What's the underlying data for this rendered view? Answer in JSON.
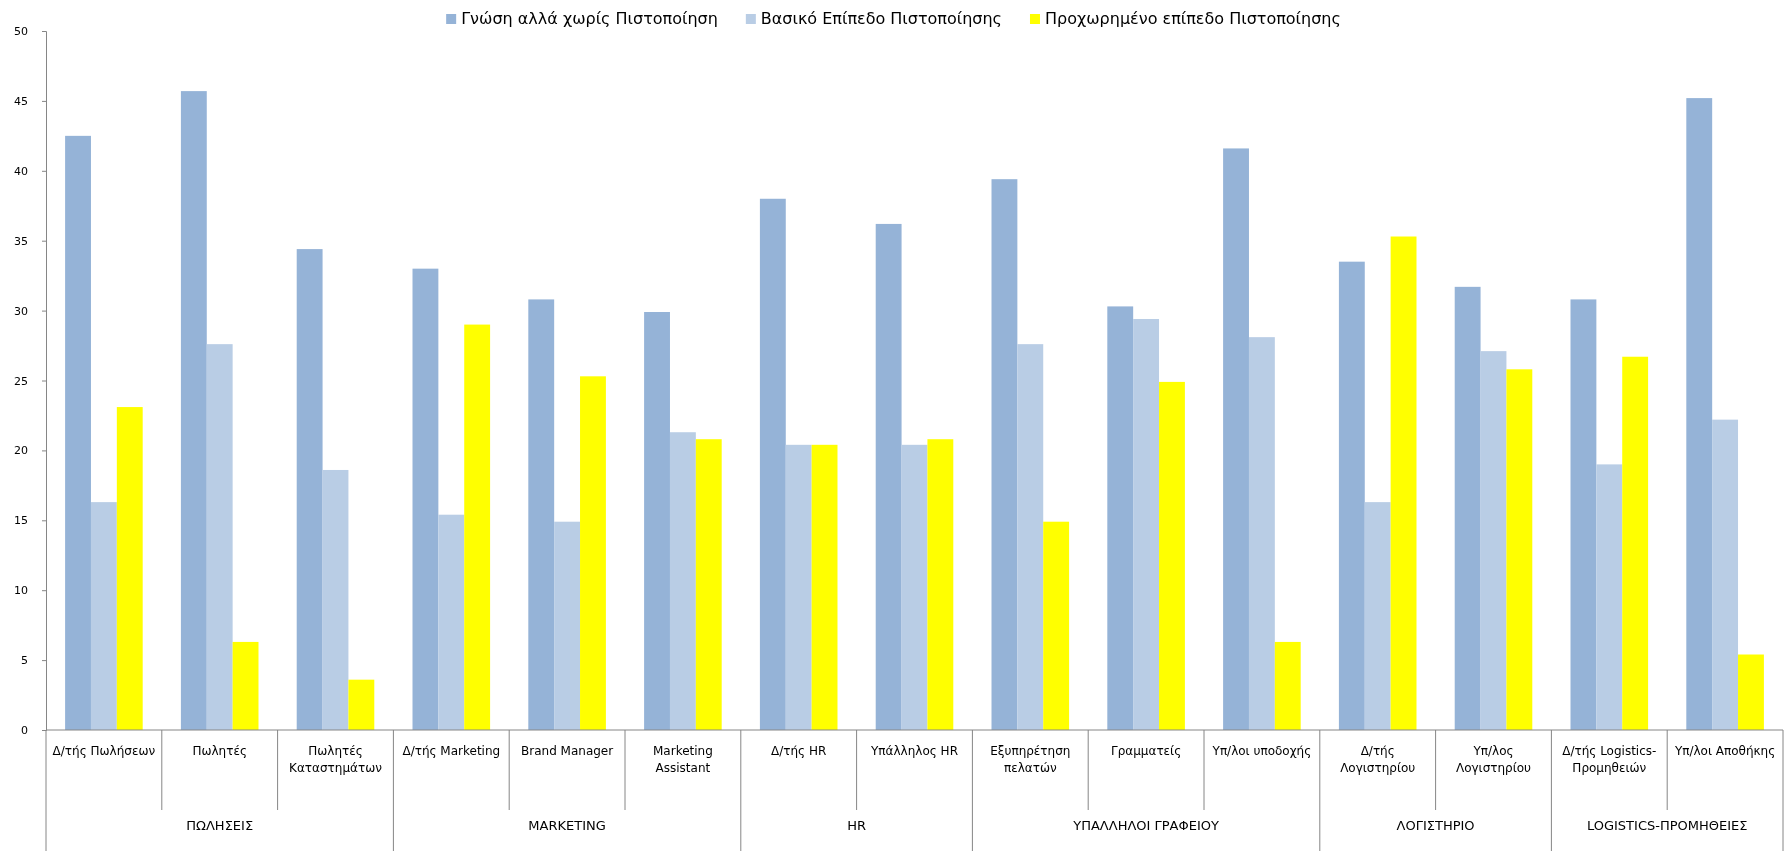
{
  "chart_data": {
    "type": "bar",
    "categories": [
      "Δ/τής Πωλήσεων",
      "Πωλητές",
      "Πωλητές Καταστημάτων",
      "Δ/τής Marketing",
      "Brand Manager",
      "Marketing Assistant",
      "Δ/τής HR",
      "Υπάλληλος HR",
      "Εξυπηρέτηση πελατών",
      "Γραμματείς",
      "Υπ/λοι υποδοχής",
      "Δ/τής Λογιστηρίου",
      "Υπ/λος Λογιστηρίου",
      "Δ/τής Logistics-Προμηθειών",
      "Υπ/λοι Αποθήκης"
    ],
    "series": [
      {
        "name": "Γνώση αλλά χωρίς Πιστοποίηση",
        "color": "#95b3d7",
        "values": [
          42.5,
          45.7,
          34.4,
          33.0,
          30.8,
          29.9,
          38.0,
          36.2,
          39.4,
          30.3,
          41.6,
          33.5,
          31.7,
          30.8,
          45.2
        ]
      },
      {
        "name": "Βασικό Επίπεδο Πιστοποίησης",
        "color": "#b9cde5",
        "values": [
          16.3,
          27.6,
          18.6,
          15.4,
          14.9,
          21.3,
          20.4,
          20.4,
          27.6,
          29.4,
          28.1,
          16.3,
          27.1,
          19.0,
          22.2
        ]
      },
      {
        "name": "Προχωρημένο επίπεδο Πιστοποίησης",
        "color": "#ffff00",
        "values": [
          23.1,
          6.3,
          3.6,
          29.0,
          25.3,
          20.8,
          20.4,
          20.8,
          14.9,
          24.9,
          6.3,
          35.3,
          25.8,
          26.7,
          5.4
        ]
      }
    ],
    "annotations": [
      "ΠΩΛΗΣΕΙΣ",
      "MARKETING",
      "HR",
      "ΥΠΑΛΛΗΛΟΙ ΓΡΑΦΕΙΟΥ",
      "ΛΟΓΙΣΤΗΡΙΟ",
      "LOGISTICS-ΠΡΟΜΗΘΕΙΕΣ"
    ],
    "ylim": [
      0,
      50
    ],
    "yticks": [
      0,
      5,
      10,
      15,
      20,
      25,
      30,
      35,
      40,
      45,
      50
    ],
    "grid": false,
    "legend": "top"
  }
}
